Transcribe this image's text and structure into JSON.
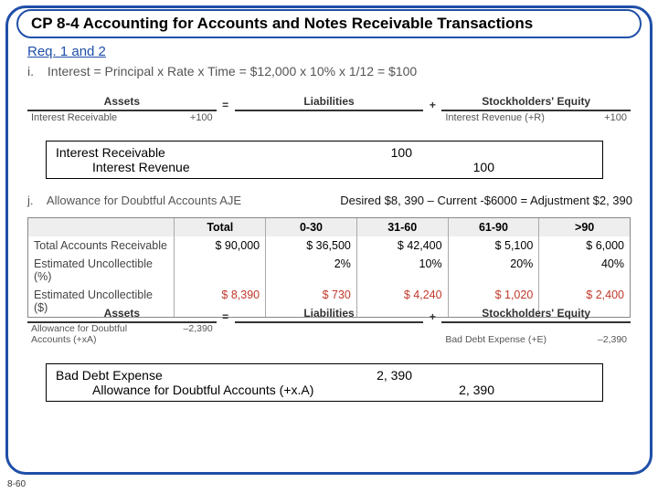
{
  "title": "CP 8-4 Accounting for Accounts and Notes Receivable Transactions",
  "req_label": "Req. 1 and 2",
  "item_i": {
    "letter": "i.",
    "text": "Interest = Principal x Rate x Time = $12,000 x 10% x 1/12 = $100"
  },
  "asl1": {
    "headers": [
      "Assets",
      "=",
      "Liabilities",
      "+",
      "Stockholders' Equity"
    ],
    "row": {
      "a_label": "Interest Receivable",
      "a_val": "+100",
      "l_val": "",
      "se_label": "Interest Revenue (+R)",
      "se_val": "+100"
    }
  },
  "je1": {
    "rows": [
      {
        "acct": "Interest Receivable",
        "indent": false,
        "dr": "100",
        "cr": ""
      },
      {
        "acct": "Interest Revenue",
        "indent": true,
        "dr": "",
        "cr": "100"
      }
    ]
  },
  "item_j": {
    "letter": "j.",
    "text": "Allowance for Doubtful Accounts AJE"
  },
  "desired_text": "Desired $8, 390 – Current -$6000 = Adjustment $2, 390",
  "aging": {
    "headers": [
      "",
      "Total",
      "0-30",
      "31-60",
      "61-90",
      ">90"
    ],
    "rows": [
      {
        "label": "Total Accounts Receivable",
        "cells": [
          "$ 90,000",
          "$ 36,500",
          "$ 42,400",
          "$ 5,100",
          "$ 6,000"
        ]
      },
      {
        "label": "Estimated Uncollectible (%)",
        "cells": [
          "",
          "2%",
          "10%",
          "20%",
          "40%"
        ]
      },
      {
        "label": "Estimated Uncollectible ($)",
        "cells": [
          "$  8,390",
          "$    730",
          "$  4,240",
          "$  1,020",
          "$  2,400"
        ],
        "red": true
      }
    ]
  },
  "asl2": {
    "headers": [
      "Assets",
      "=",
      "Liabilities",
      "+",
      "Stockholders' Equity"
    ],
    "row": {
      "a_label1": "Allowance for Doubtful",
      "a_label2": "Accounts (+xA)",
      "a_val": "–2,390",
      "l_val": "",
      "se_label": "Bad Debt Expense (+E)",
      "se_val": "–2,390"
    }
  },
  "je2": {
    "rows": [
      {
        "acct": "Bad Debt Expense",
        "indent": false,
        "dr": "2, 390",
        "cr": ""
      },
      {
        "acct": "Allowance for Doubtful Accounts (+x.A)",
        "indent": true,
        "dr": "",
        "cr": "2, 390"
      }
    ]
  },
  "page_num": "8-60"
}
